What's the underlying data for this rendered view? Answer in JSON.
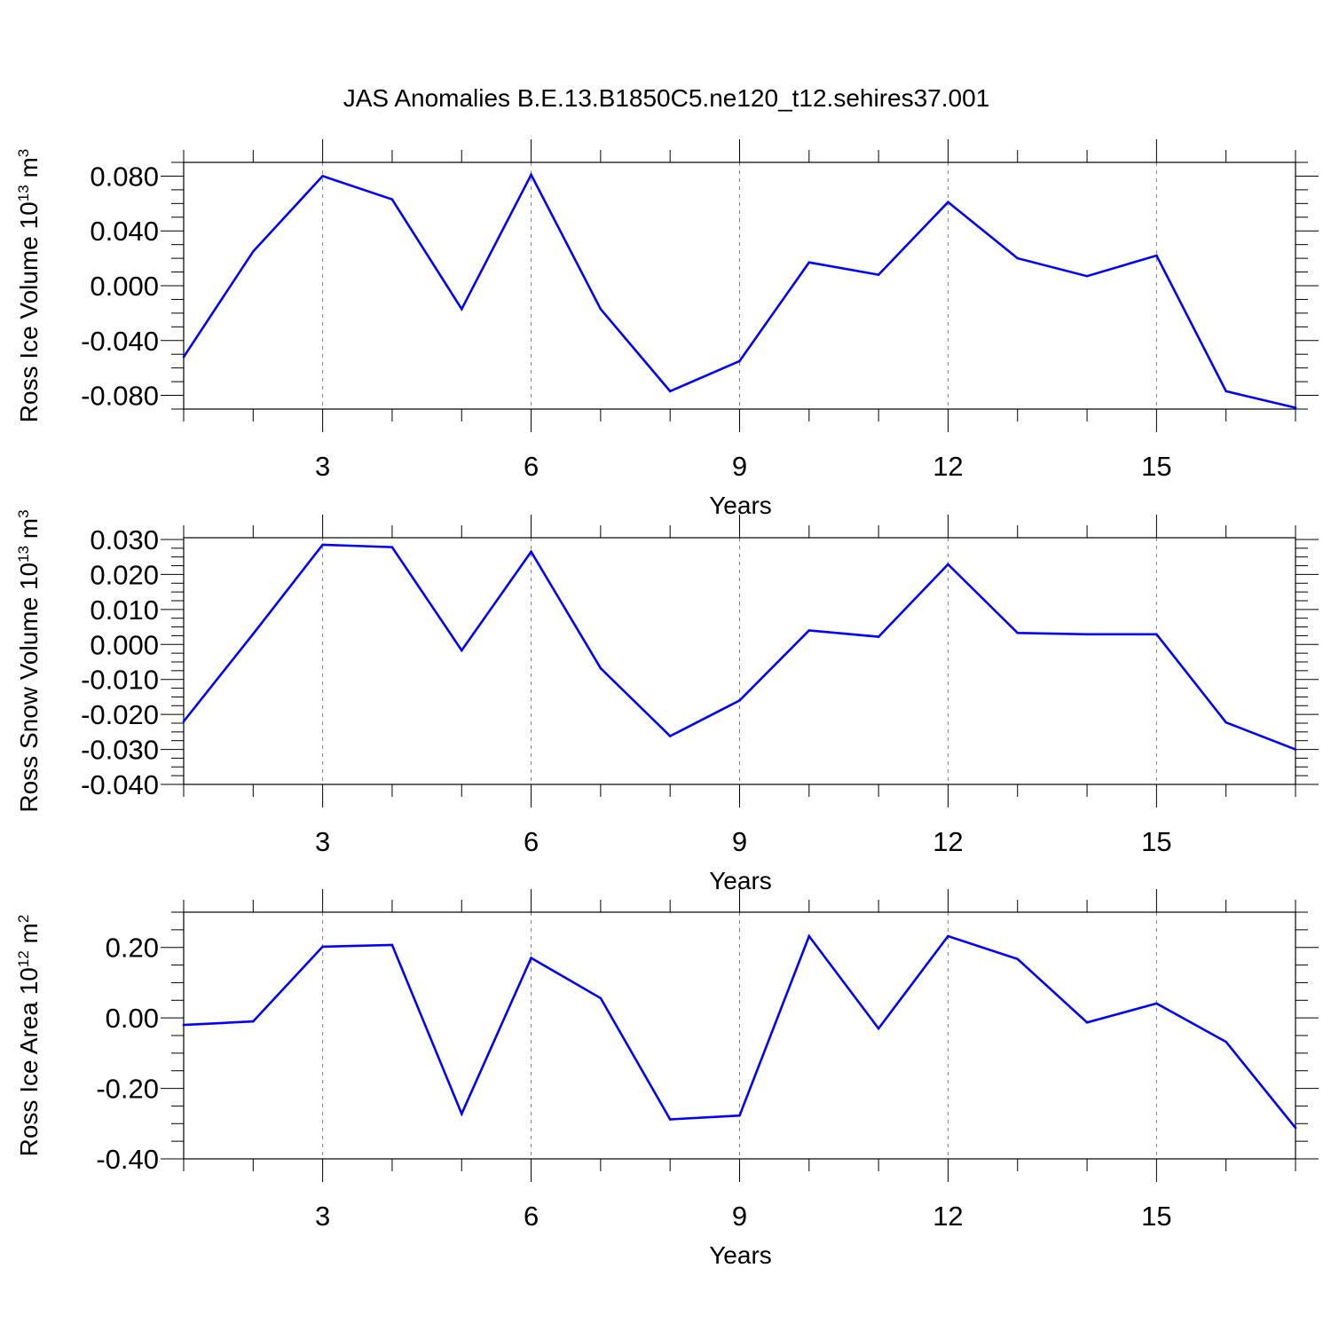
{
  "title": "JAS Anomalies B.E.13.B1850C5.ne120_t12.sehires37.001",
  "colors": {
    "line": "#0000ff",
    "axis": "#000000",
    "grid": "#808080"
  },
  "chart_data": [
    {
      "type": "line",
      "ylabel": {
        "text": "Ross Ice Volume 10",
        "sup": "13",
        "unit": " m",
        "unit_sup": "3"
      },
      "xlabel": "Years",
      "xlim": [
        1,
        17
      ],
      "ylim": [
        -0.09,
        0.09
      ],
      "xticks": [
        3,
        6,
        9,
        12,
        15
      ],
      "xtick_labels": [
        "3",
        "6",
        "9",
        "12",
        "15"
      ],
      "yticks": [
        -0.08,
        -0.04,
        0.0,
        0.04,
        0.08
      ],
      "ytick_labels": [
        "-0.080",
        "-0.040",
        "0.000",
        "0.040",
        "0.080"
      ],
      "grid": "vertical-dashed",
      "x": [
        1,
        2,
        3,
        4,
        5,
        6,
        7,
        8,
        9,
        10,
        11,
        12,
        13,
        14,
        15,
        16,
        17
      ],
      "values": [
        -0.052,
        0.025,
        0.08,
        0.063,
        -0.017,
        0.081,
        -0.017,
        -0.077,
        -0.055,
        0.017,
        0.008,
        0.061,
        0.02,
        0.007,
        0.022,
        -0.077,
        -0.089
      ]
    },
    {
      "type": "line",
      "ylabel": {
        "text": "Ross Snow Volume 10",
        "sup": "13",
        "unit": " m",
        "unit_sup": "3"
      },
      "xlabel": "Years",
      "xlim": [
        1,
        17
      ],
      "ylim": [
        -0.04,
        0.0305
      ],
      "xticks": [
        3,
        6,
        9,
        12,
        15
      ],
      "xtick_labels": [
        "3",
        "6",
        "9",
        "12",
        "15"
      ],
      "yticks": [
        -0.04,
        -0.03,
        -0.02,
        -0.01,
        0.0,
        0.01,
        0.02,
        0.03
      ],
      "ytick_labels": [
        "-0.040",
        "-0.030",
        "-0.020",
        "-0.010",
        "0.000",
        "0.010",
        "0.020",
        "0.030"
      ],
      "grid": "vertical-dashed",
      "x": [
        1,
        2,
        3,
        4,
        5,
        6,
        7,
        8,
        9,
        10,
        11,
        12,
        13,
        14,
        15,
        16,
        17
      ],
      "values": [
        -0.022,
        0.003,
        0.0285,
        0.0278,
        -0.0017,
        0.0265,
        -0.0068,
        -0.0262,
        -0.016,
        0.004,
        0.0022,
        0.0229,
        0.0033,
        0.0029,
        0.0029,
        -0.0223,
        -0.03
      ]
    },
    {
      "type": "line",
      "ylabel": {
        "text": "Ross Ice Area 10",
        "sup": "12",
        "unit": " m",
        "unit_sup": "2"
      },
      "xlabel": "Years",
      "xlim": [
        1,
        17
      ],
      "ylim": [
        -0.4,
        0.3
      ],
      "xticks": [
        3,
        6,
        9,
        12,
        15
      ],
      "xtick_labels": [
        "3",
        "6",
        "9",
        "12",
        "15"
      ],
      "yticks": [
        -0.4,
        -0.2,
        0.0,
        0.2
      ],
      "ytick_labels": [
        "-0.40",
        "-0.20",
        "0.00",
        "0.20"
      ],
      "grid": "vertical-dashed",
      "x": [
        1,
        2,
        3,
        4,
        5,
        6,
        7,
        8,
        9,
        10,
        11,
        12,
        13,
        14,
        15,
        16,
        17
      ],
      "values": [
        -0.02,
        -0.01,
        0.202,
        0.207,
        -0.272,
        0.17,
        0.056,
        -0.288,
        -0.277,
        0.232,
        -0.03,
        0.232,
        0.167,
        -0.013,
        0.041,
        -0.068,
        -0.312
      ]
    }
  ]
}
